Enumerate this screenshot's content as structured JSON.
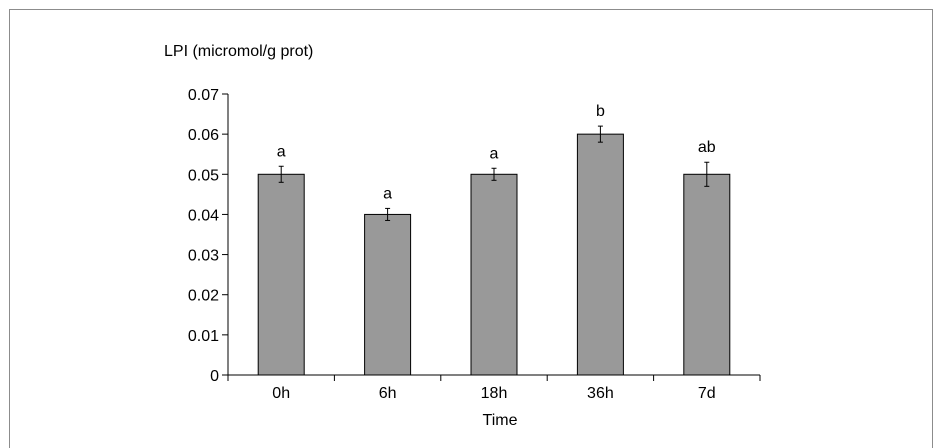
{
  "chart_data": {
    "type": "bar",
    "title": "",
    "ylabel": "LPI (micromol/g prot)",
    "xlabel": "Time",
    "categories": [
      "0h",
      "6h",
      "18h",
      "36h",
      "7d"
    ],
    "values": [
      0.05,
      0.04,
      0.05,
      0.06,
      0.05
    ],
    "errors": [
      0.002,
      0.0015,
      0.0015,
      0.002,
      0.003
    ],
    "significance": [
      "a",
      "a",
      "a",
      "b",
      "ab"
    ],
    "ylim": [
      0,
      0.07
    ],
    "yticks": [
      "0",
      "0.01",
      "0.02",
      "0.03",
      "0.04",
      "0.05",
      "0.06",
      "0.07"
    ],
    "grid": false,
    "legend": "none",
    "bar_color": "#999999",
    "bar_edge_color": "#000000"
  }
}
